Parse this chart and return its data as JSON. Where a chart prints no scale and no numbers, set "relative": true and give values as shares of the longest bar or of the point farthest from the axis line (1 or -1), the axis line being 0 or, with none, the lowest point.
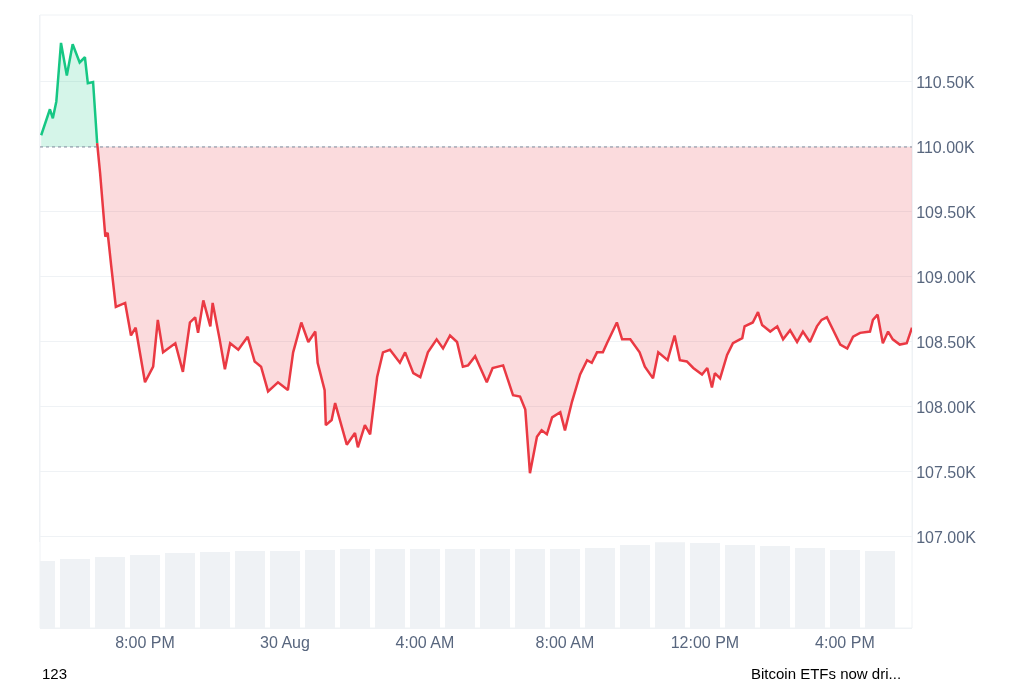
{
  "chart_data": [
    {
      "type": "line",
      "xlim": [
        "--08-29T17:00",
        "--08-30T17:55"
      ],
      "xticks": [
        {
          "value": "--08-29T20:00",
          "label": "8:00 PM"
        },
        {
          "value": "--08-30T00:00",
          "label": "30 Aug"
        },
        {
          "value": "--08-30T04:00",
          "label": "4:00 AM"
        },
        {
          "value": "--08-30T08:00",
          "label": "8:00 AM"
        },
        {
          "value": "--08-30T12:00",
          "label": "12:00 PM"
        },
        {
          "value": "--08-30T16:00",
          "label": "4:00 PM"
        }
      ],
      "ylim": [
        106960,
        111015
      ],
      "yticks": [
        {
          "value": 107000,
          "label": "107.00K"
        },
        {
          "value": 107500,
          "label": "107.50K"
        },
        {
          "value": 108000,
          "label": "108.00K"
        },
        {
          "value": 108500,
          "label": "108.50K"
        },
        {
          "value": 109000,
          "label": "109.00K"
        },
        {
          "value": 109500,
          "label": "109.50K"
        },
        {
          "value": 110000,
          "label": "110.00K"
        },
        {
          "value": 110500,
          "label": "110.50K"
        }
      ],
      "grid": "y",
      "tick_labels": "y",
      "ref_lines": [
        {
          "axis": "y",
          "value": 110000,
          "color": "#808a9d",
          "line_style": "dotted"
        }
      ],
      "series": [
        {
          "color": "#16c784",
          "x": [
            "--08-29T17:02",
            "--08-29T17:17",
            "--08-29T17:22",
            "--08-29T17:28",
            "--08-29T17:36",
            "--08-29T17:46",
            "--08-29T17:56",
            "--08-29T18:08",
            "--08-29T18:17",
            "--08-29T18:22",
            "--08-29T18:31",
            "--08-29T18:38"
          ],
          "values": [
            110090,
            110290,
            110220,
            110350,
            110800,
            110550,
            110790,
            110650,
            110690,
            110490,
            110500,
            110030
          ],
          "lower": [
            110000,
            110000,
            110000,
            110000,
            110000,
            110000,
            110000,
            110000,
            110000,
            110000,
            110000,
            110000
          ],
          "upper": [
            110090,
            110290,
            110220,
            110350,
            110800,
            110550,
            110790,
            110650,
            110690,
            110490,
            110500,
            110030
          ]
        },
        {
          "color": "#ea3943",
          "x": [
            "--08-29T18:38",
            "--08-29T18:43",
            "--08-29T18:52",
            "--08-29T18:56",
            "--08-29T19:02",
            "--08-29T19:10",
            "--08-29T19:26",
            "--08-29T19:36",
            "--08-29T19:44",
            "--08-29T20:00",
            "--08-29T20:14",
            "--08-29T20:22",
            "--08-29T20:31",
            "--08-29T20:52",
            "--08-29T21:05",
            "--08-29T21:17",
            "--08-29T21:26",
            "--08-29T21:31",
            "--08-29T21:40",
            "--08-29T21:52",
            "--08-29T21:56",
            "--08-29T22:08",
            "--08-29T22:17",
            "--08-29T22:26",
            "--08-29T22:40",
            "--08-29T22:56",
            "--08-29T23:08",
            "--08-29T23:19",
            "--08-29T23:31",
            "--08-29T23:48",
            "--08-30T00:05",
            "--08-30T00:14",
            "--08-30T00:28",
            "--08-30T00:40",
            "--08-30T00:52",
            "--08-30T00:56",
            "--08-30T01:08",
            "--08-30T01:10",
            "--08-30T01:20",
            "--08-30T01:26",
            "--08-30T01:46",
            "--08-30T02:00",
            "--08-30T02:05",
            "--08-30T02:17",
            "--08-30T02:26",
            "--08-30T02:38",
            "--08-30T02:48",
            "--08-30T03:00",
            "--08-30T03:17",
            "--08-30T03:26",
            "--08-30T03:40",
            "--08-30T03:52",
            "--08-30T04:05",
            "--08-30T04:20",
            "--08-30T04:31",
            "--08-30T04:43",
            "--08-30T04:55",
            "--08-30T05:05",
            "--08-30T05:14",
            "--08-30T05:26",
            "--08-30T05:46",
            "--08-30T05:56",
            "--08-30T06:14",
            "--08-30T06:31",
            "--08-30T06:43",
            "--08-30T06:52",
            "--08-30T07:00",
            "--08-30T07:12",
            "--08-30T07:20",
            "--08-30T07:29",
            "--08-30T07:38",
            "--08-30T07:52",
            "--08-30T08:00",
            "--08-30T08:12",
            "--08-30T08:26",
            "--08-30T08:38",
            "--08-30T08:46",
            "--08-30T08:55",
            "--08-30T09:05",
            "--08-30T09:12",
            "--08-30T09:29",
            "--08-30T09:38",
            "--08-30T09:52",
            "--08-30T10:08",
            "--08-30T10:17",
            "--08-30T10:31",
            "--08-30T10:40",
            "--08-30T10:56",
            "--08-30T11:08",
            "--08-30T11:17",
            "--08-30T11:29",
            "--08-30T11:40",
            "--08-30T11:55",
            "--08-30T12:04",
            "--08-30T12:12",
            "--08-30T12:17",
            "--08-30T12:26",
            "--08-30T12:38",
            "--08-30T12:48",
            "--08-30T13:04",
            "--08-30T13:08",
            "--08-30T13:22",
            "--08-30T13:31",
            "--08-30T13:38",
            "--08-30T13:52",
            "--08-30T14:04",
            "--08-30T14:14",
            "--08-30T14:26",
            "--08-30T14:38",
            "--08-30T14:48",
            "--08-30T15:00",
            "--08-30T15:12",
            "--08-30T15:20",
            "--08-30T15:29",
            "--08-30T15:40",
            "--08-30T15:52",
            "--08-30T16:04",
            "--08-30T16:14",
            "--08-30T16:26",
            "--08-30T16:43",
            "--08-30T16:48",
            "--08-30T16:56",
            "--08-30T17:05",
            "--08-30T17:14",
            "--08-30T17:22",
            "--08-30T17:34",
            "--08-30T17:46",
            "--08-30T17:55"
          ],
          "values": [
            110030,
            109800,
            109310,
            109340,
            109090,
            108770,
            108800,
            108550,
            108610,
            108190,
            108310,
            108670,
            108420,
            108490,
            108270,
            108650,
            108690,
            108570,
            108820,
            108620,
            108800,
            108520,
            108290,
            108490,
            108440,
            108540,
            108350,
            108310,
            108120,
            108190,
            108130,
            108420,
            108650,
            108500,
            108580,
            108340,
            108130,
            107860,
            107900,
            108030,
            107710,
            107800,
            107690,
            107860,
            107790,
            108230,
            108420,
            108440,
            108340,
            108420,
            108260,
            108230,
            108420,
            108520,
            108450,
            108550,
            108500,
            108310,
            108320,
            108390,
            108190,
            108300,
            108320,
            108090,
            108080,
            107980,
            107490,
            107770,
            107820,
            107790,
            107920,
            107960,
            107820,
            108040,
            108250,
            108360,
            108340,
            108420,
            108420,
            108490,
            108650,
            108520,
            108520,
            108420,
            108310,
            108220,
            108420,
            108360,
            108550,
            108360,
            108350,
            108300,
            108250,
            108300,
            108150,
            108260,
            108220,
            108400,
            108490,
            108530,
            108620,
            108650,
            108730,
            108630,
            108580,
            108620,
            108520,
            108590,
            108500,
            108580,
            108500,
            108620,
            108670,
            108690,
            108590,
            108480,
            108450,
            108540,
            108570,
            108580,
            108670,
            108710,
            108490,
            108580,
            108520,
            108480,
            108490,
            108610
          ],
          "lower": [
            110030,
            109800,
            109310,
            109340,
            109090,
            108770,
            108800,
            108550,
            108610,
            108190,
            108310,
            108670,
            108420,
            108490,
            108270,
            108650,
            108690,
            108570,
            108820,
            108620,
            108800,
            108520,
            108290,
            108490,
            108440,
            108540,
            108350,
            108310,
            108120,
            108190,
            108130,
            108420,
            108650,
            108500,
            108580,
            108340,
            108130,
            107860,
            107900,
            108030,
            107710,
            107800,
            107690,
            107860,
            107790,
            108230,
            108420,
            108440,
            108340,
            108420,
            108260,
            108230,
            108420,
            108520,
            108450,
            108550,
            108500,
            108310,
            108320,
            108390,
            108190,
            108300,
            108320,
            108090,
            108080,
            107980,
            107490,
            107770,
            107820,
            107790,
            107920,
            107960,
            107820,
            108040,
            108250,
            108360,
            108340,
            108420,
            108420,
            108490,
            108650,
            108520,
            108520,
            108420,
            108310,
            108220,
            108420,
            108360,
            108550,
            108360,
            108350,
            108300,
            108250,
            108300,
            108150,
            108260,
            108220,
            108400,
            108490,
            108530,
            108620,
            108650,
            108730,
            108630,
            108580,
            108620,
            108520,
            108590,
            108500,
            108580,
            108500,
            108620,
            108670,
            108690,
            108590,
            108480,
            108450,
            108540,
            108570,
            108580,
            108670,
            108710,
            108490,
            108580,
            108520,
            108480,
            108490,
            108610
          ],
          "upper": [
            110000,
            110000,
            110000,
            110000,
            110000,
            110000,
            110000,
            110000,
            110000,
            110000,
            110000,
            110000,
            110000,
            110000,
            110000,
            110000,
            110000,
            110000,
            110000,
            110000,
            110000,
            110000,
            110000,
            110000,
            110000,
            110000,
            110000,
            110000,
            110000,
            110000,
            110000,
            110000,
            110000,
            110000,
            110000,
            110000,
            110000,
            110000,
            110000,
            110000,
            110000,
            110000,
            110000,
            110000,
            110000,
            110000,
            110000,
            110000,
            110000,
            110000,
            110000,
            110000,
            110000,
            110000,
            110000,
            110000,
            110000,
            110000,
            110000,
            110000,
            110000,
            110000,
            110000,
            110000,
            110000,
            110000,
            110000,
            110000,
            110000,
            110000,
            110000,
            110000,
            110000,
            110000,
            110000,
            110000,
            110000,
            110000,
            110000,
            110000,
            110000,
            110000,
            110000,
            110000,
            110000,
            110000,
            110000,
            110000,
            110000,
            110000,
            110000,
            110000,
            110000,
            110000,
            110000,
            110000,
            110000,
            110000,
            110000,
            110000,
            110000,
            110000,
            110000,
            110000,
            110000,
            110000,
            110000,
            110000,
            110000,
            110000,
            110000,
            110000,
            110000,
            110000,
            110000,
            110000,
            110000,
            110000,
            110000,
            110000,
            110000,
            110000,
            110000,
            110000,
            110000,
            110000,
            110000,
            110000
          ]
        }
      ],
      "annotations": [
        "123",
        "Bitcoin ETFs now dri..."
      ]
    },
    {
      "type": "bar",
      "relative": true,
      "tick_labels": "x",
      "color": "#eff2f5",
      "xlim": [
        "--08-29T17:00",
        "--08-30T17:55"
      ],
      "xticks": [
        {
          "value": "--08-29T20:00",
          "label": "8:00 PM"
        },
        {
          "value": "--08-30T00:00",
          "label": "30 Aug"
        },
        {
          "value": "--08-30T04:00",
          "label": "4:00 AM"
        },
        {
          "value": "--08-30T08:00",
          "label": "8:00 AM"
        },
        {
          "value": "--08-30T12:00",
          "label": "12:00 PM"
        },
        {
          "value": "--08-30T16:00",
          "label": "4:00 PM"
        }
      ],
      "x": [
        "--08-29T17:00",
        "--08-29T18:00",
        "--08-29T19:00",
        "--08-29T20:00",
        "--08-29T21:00",
        "--08-29T22:00",
        "--08-29T23:00",
        "--08-30T00:00",
        "--08-30T01:00",
        "--08-30T02:00",
        "--08-30T03:00",
        "--08-30T04:00",
        "--08-30T05:00",
        "--08-30T06:00",
        "--08-30T07:00",
        "--08-30T08:00",
        "--08-30T09:00",
        "--08-30T10:00",
        "--08-30T11:00",
        "--08-30T12:00",
        "--08-30T13:00",
        "--08-30T14:00",
        "--08-30T15:00",
        "--08-30T16:00",
        "--08-30T17:00"
      ],
      "values": [
        0.78,
        0.8,
        0.83,
        0.85,
        0.87,
        0.88,
        0.89,
        0.9,
        0.91,
        0.92,
        0.92,
        0.92,
        0.92,
        0.92,
        0.92,
        0.92,
        0.93,
        0.96,
        1.0,
        0.99,
        0.97,
        0.95,
        0.93,
        0.91,
        0.9
      ]
    }
  ]
}
